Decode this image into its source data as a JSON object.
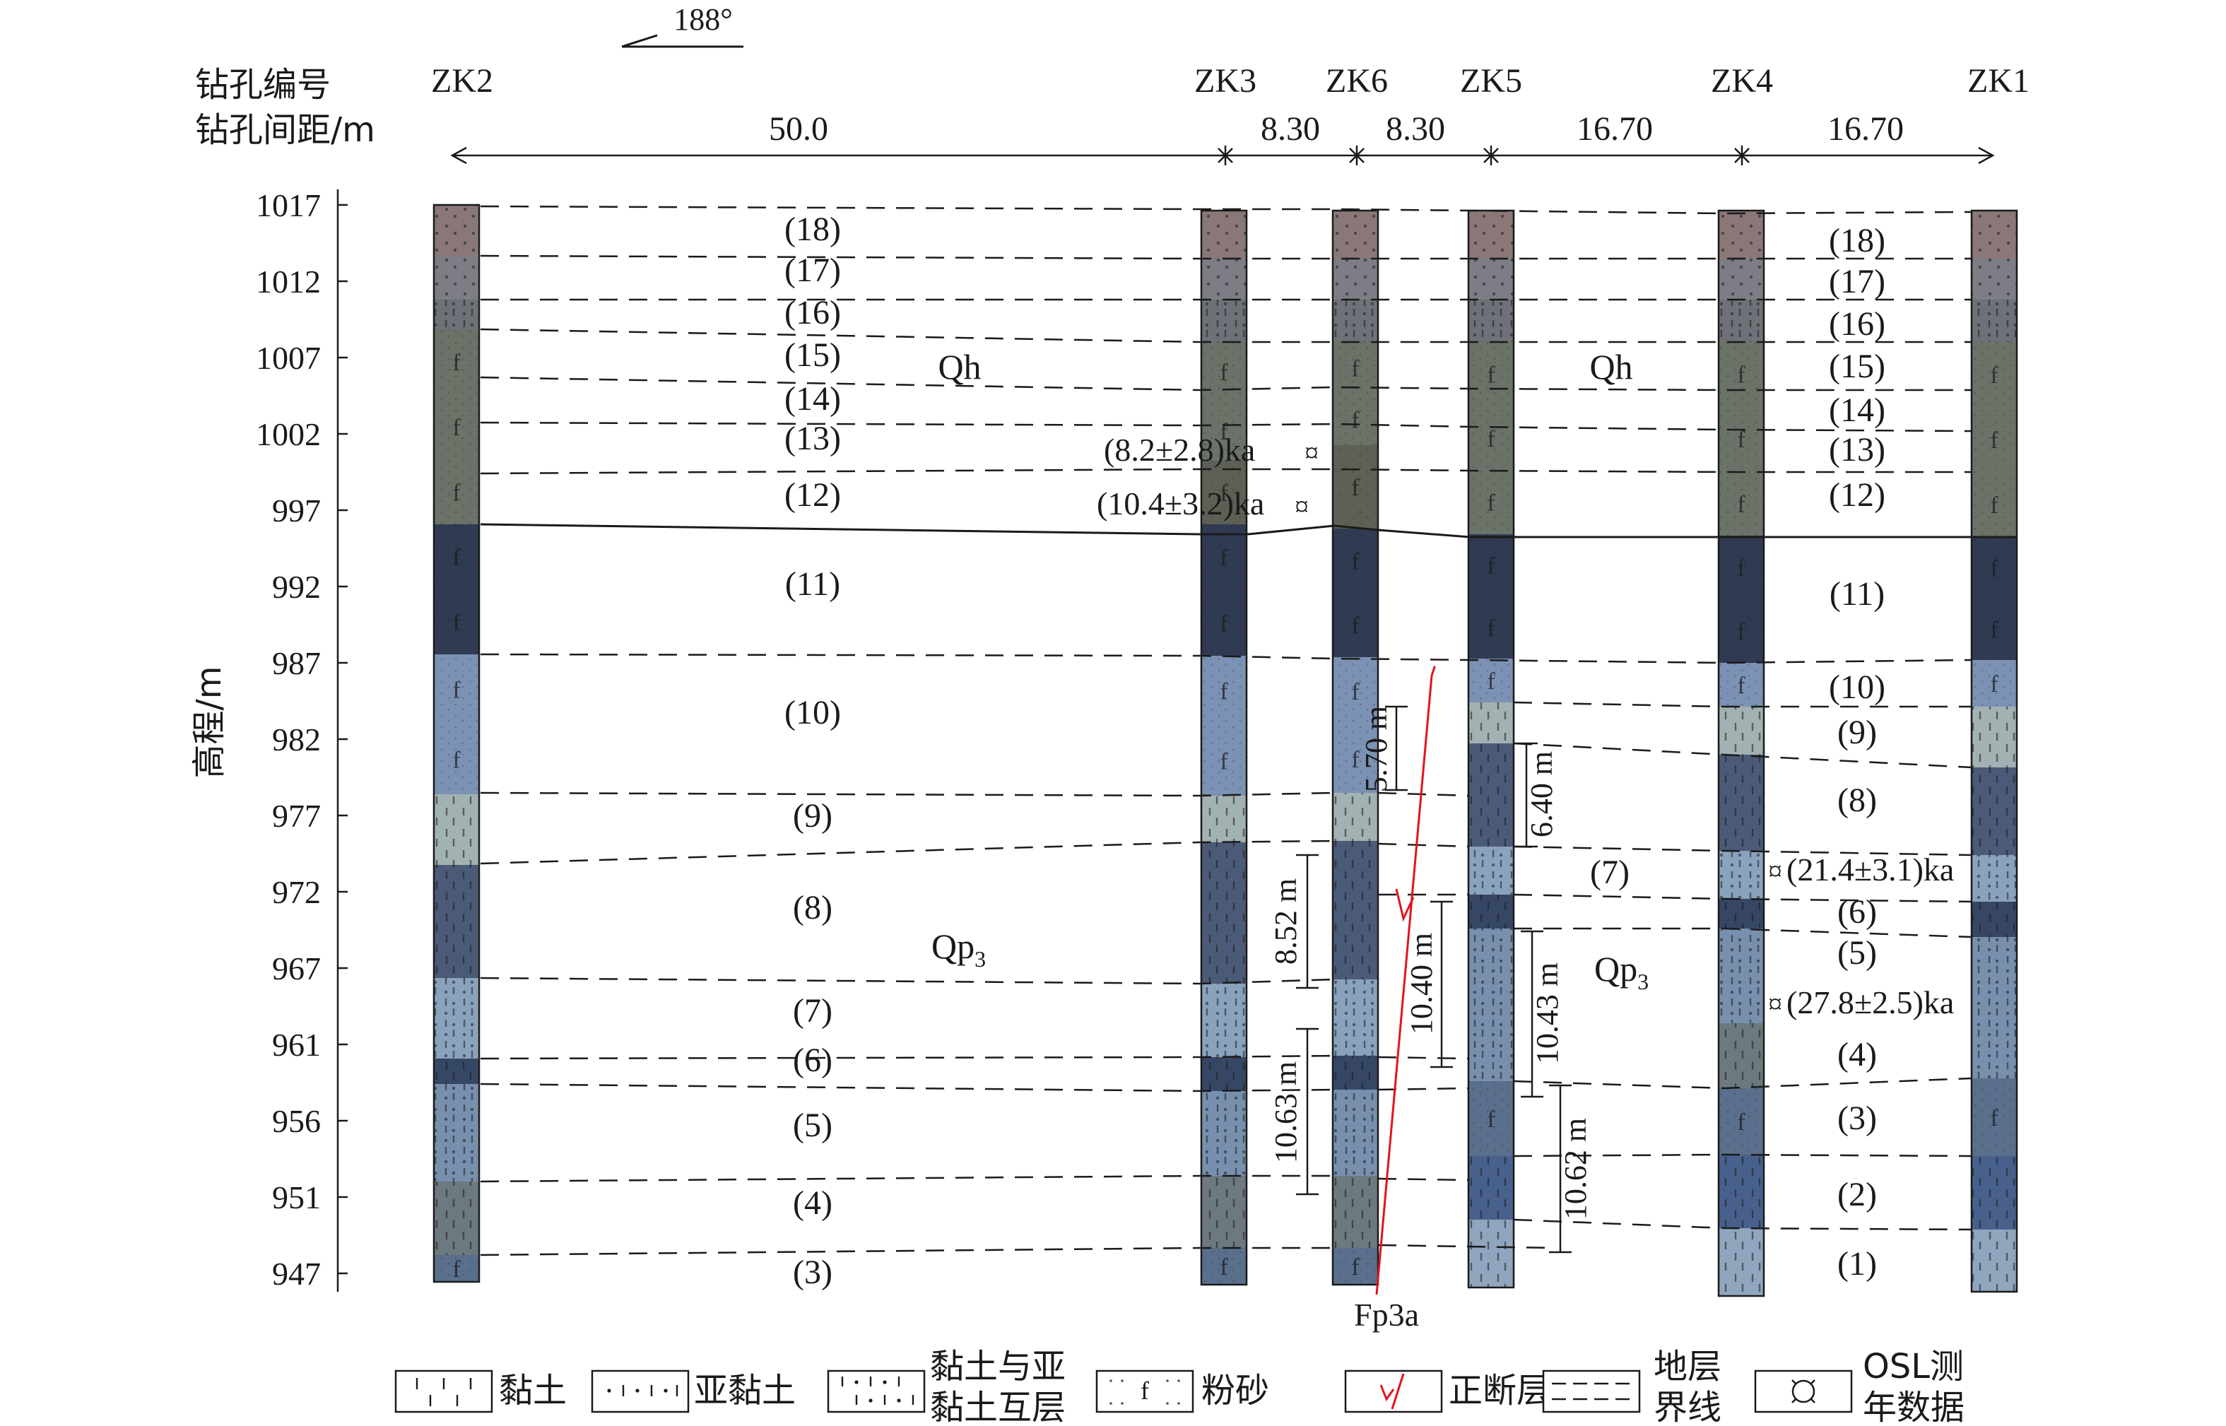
{
  "header": {
    "orientation": "188°",
    "label_id": "钻孔编号",
    "label_spacing": "钻孔间距/m"
  },
  "y_axis": {
    "label": "高程/m",
    "ticks": [
      "1017",
      "1012",
      "1007",
      "1002",
      "997",
      "992",
      "987",
      "982",
      "977",
      "972",
      "967",
      "961",
      "956",
      "951",
      "947"
    ]
  },
  "boreholes": [
    "ZK2",
    "ZK3",
    "ZK6",
    "ZK5",
    "ZK4",
    "ZK1"
  ],
  "spacings": [
    "50.0",
    "8.30",
    "8.30",
    "16.70",
    "16.70"
  ],
  "layers_left": [
    "(18)",
    "(17)",
    "(16)",
    "(15)",
    "(14)",
    "(13)",
    "(12)",
    "(11)",
    "(10)",
    "(9)",
    "(8)",
    "(7)",
    "(6)",
    "(5)",
    "(4)",
    "(3)"
  ],
  "layers_right": [
    "(18)",
    "(17)",
    "(16)",
    "(15)",
    "(14)",
    "(13)",
    "(12)",
    "(11)",
    "(10)",
    "(9)",
    "(8)",
    "(7)",
    "(6)",
    "(5)",
    "(4)",
    "(3)",
    "(2)",
    "(1)"
  ],
  "units": {
    "qh": "Qh",
    "qp": "Qp",
    "qp_sub": "3"
  },
  "osl": [
    "(8.2±2.8)ka",
    "(10.4±3.2)ka",
    "(21.4±3.1)ka",
    "(27.8±2.5)ka"
  ],
  "osl_symbol": "¤",
  "offsets": [
    "5.70 m",
    "6.40 m",
    "8.52 m",
    "10.40 m",
    "10.43 m",
    "10.63 m",
    "10.62 m"
  ],
  "fault_label": "Fp3a",
  "silt_mark": "f",
  "legend": {
    "clay": "黏土",
    "silty_clay": "亚黏土",
    "interbed_1": "黏土与亚",
    "interbed_2": "黏土互层",
    "silt": "粉砂",
    "fault": "正断层",
    "boundary_1": "地层",
    "boundary_2": "界线",
    "osl_1": "OSL测",
    "osl_2": "年数据"
  },
  "colors": {
    "l18": "#8a7878",
    "l17": "#7d7d86",
    "l16": "#6e7278",
    "l15": "#6b7268",
    "l12": "#5d6055",
    "l11": "#303a52",
    "l10": "#7b92b4",
    "l9": "#a2b2b2",
    "l8": "#4b5b77",
    "l7": "#8aa3bd",
    "l6": "#364766",
    "l5": "#7890ad",
    "l4": "#6c7a80",
    "l3": "#5a6f8c",
    "l2": "#48618c",
    "l1": "#8fa6be",
    "fault": "#e0141e"
  }
}
